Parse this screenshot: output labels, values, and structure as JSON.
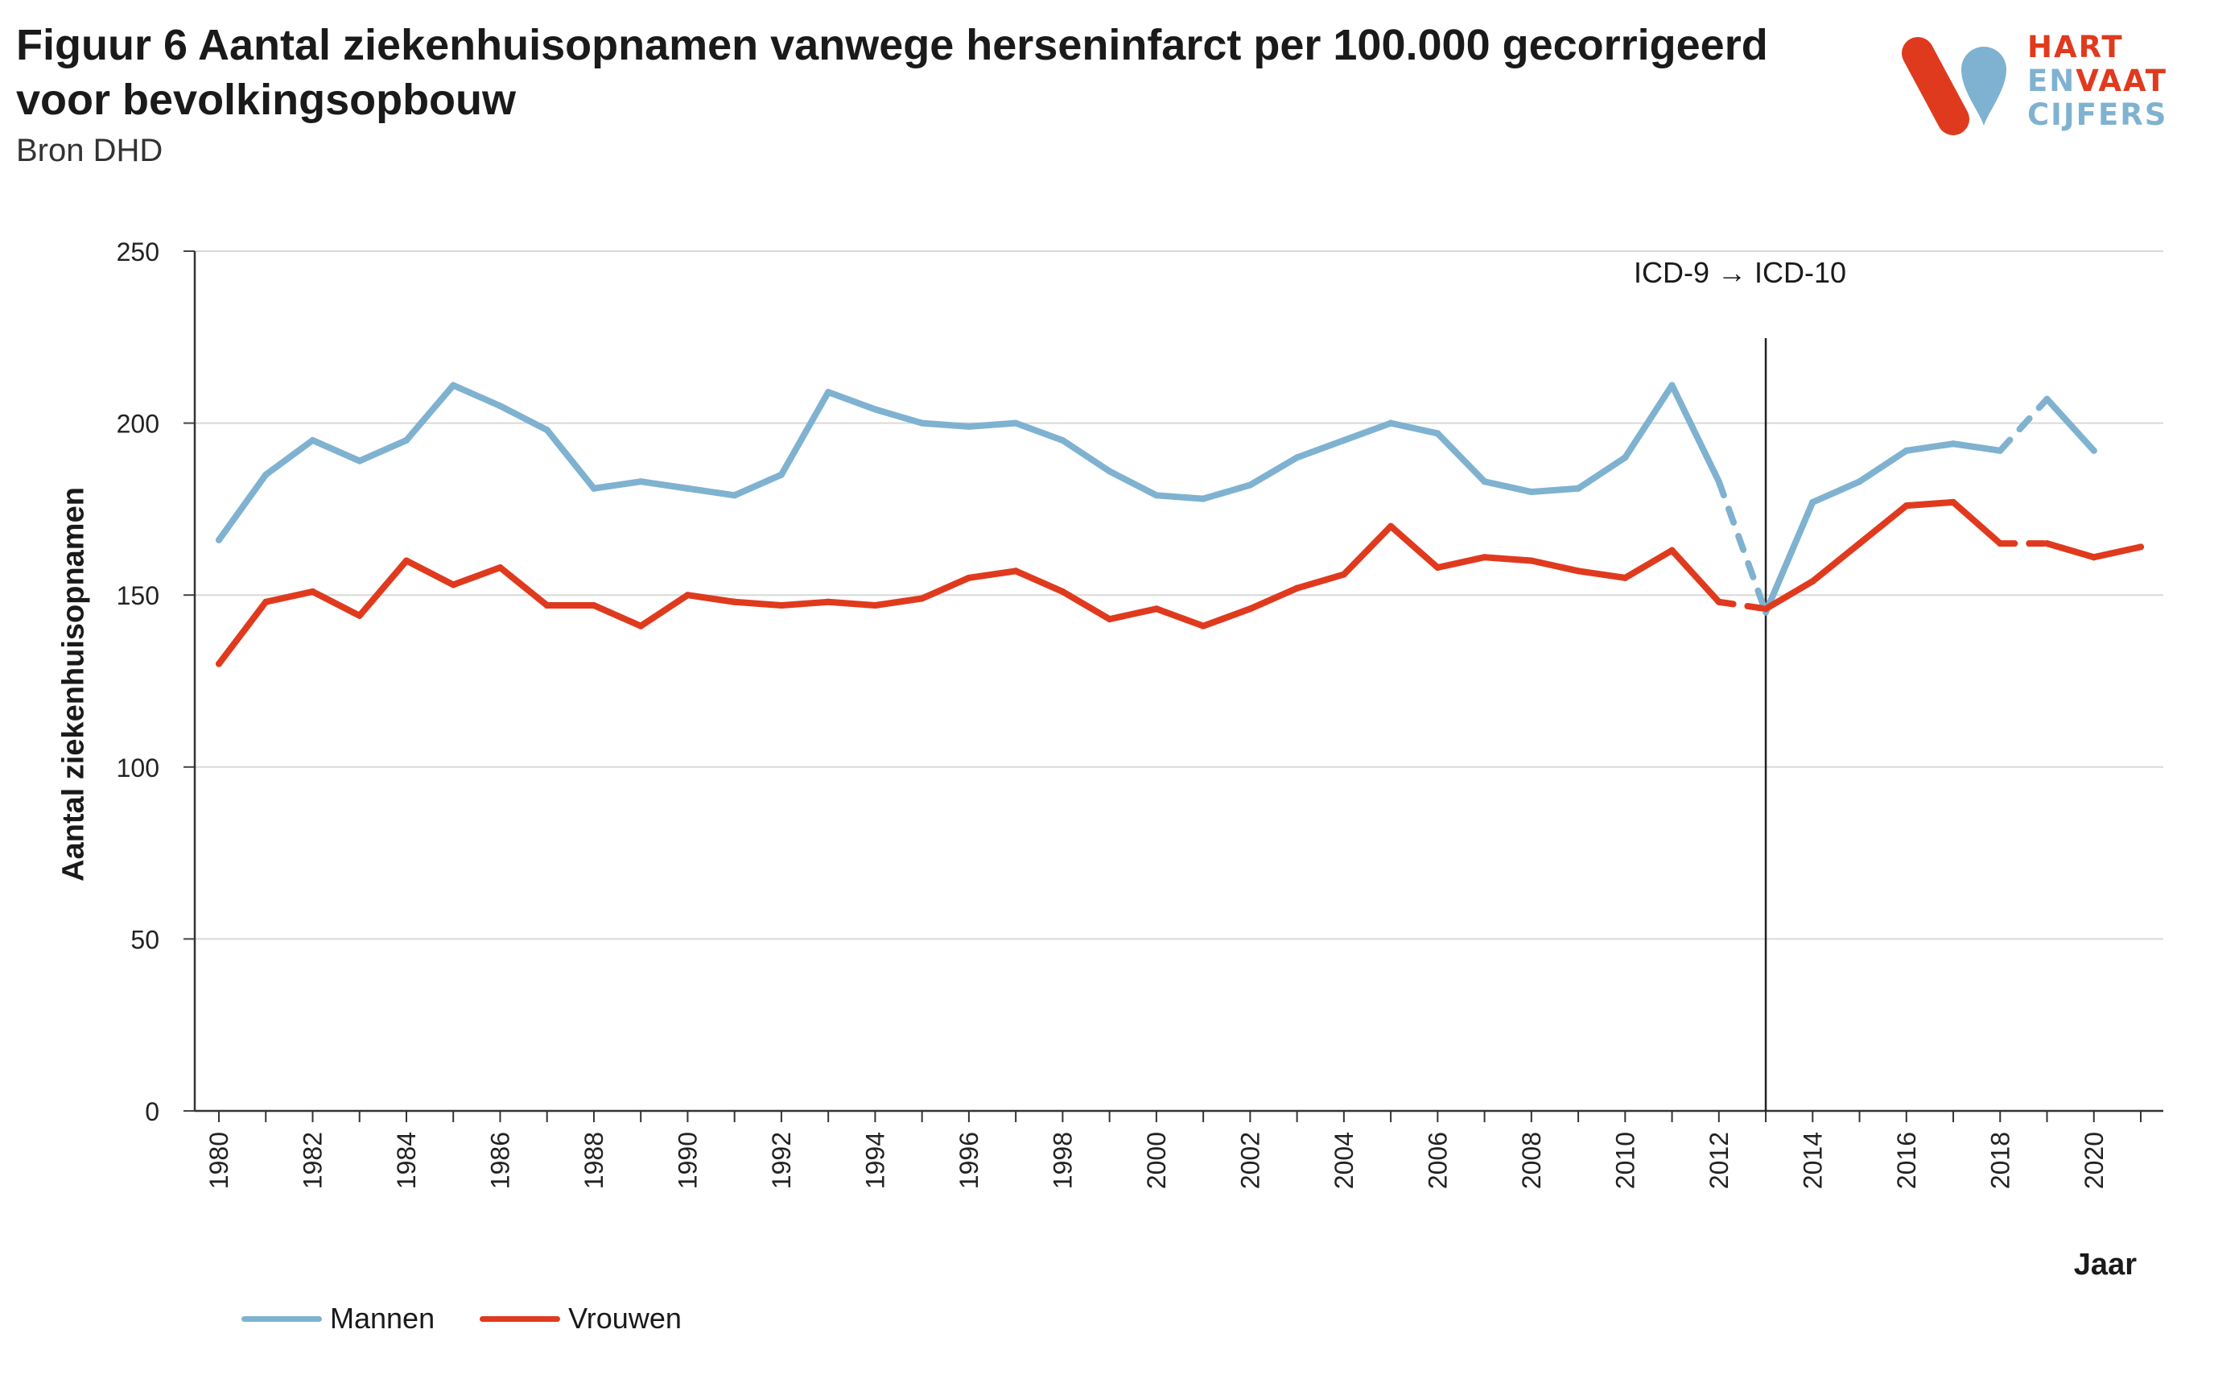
{
  "header": {
    "title": "Figuur 6 Aantal ziekenhuisopnamen vanwege herseninfarct per 100.000 gecorrigeerd voor bevolkingsopbouw",
    "source": "Bron DHD"
  },
  "logo": {
    "line1": "HART",
    "line2a": "EN",
    "line2b": "VAAT",
    "line3": "CIJFERS",
    "colors": {
      "red": "#e03a1e",
      "blue": "#7fb2d0"
    }
  },
  "chart_data": {
    "type": "line",
    "title": "Figuur 6 Aantal ziekenhuisopnamen vanwege herseninfarct per 100.000 gecorrigeerd voor bevolkingsopbouw",
    "xlabel": "Jaar",
    "ylabel": "Aantal ziekenhuisopnamen",
    "ylim": [
      0,
      250
    ],
    "yticks": [
      0,
      50,
      100,
      150,
      200,
      250
    ],
    "xlim": [
      1980,
      2021
    ],
    "xticks": [
      1980,
      1982,
      1984,
      1986,
      1988,
      1990,
      1992,
      1994,
      1996,
      1998,
      2000,
      2002,
      2004,
      2006,
      2008,
      2010,
      2012,
      2014,
      2016,
      2018,
      2020
    ],
    "grid": true,
    "legend": "bottom-left",
    "annotation": {
      "text": "ICD-9 → ICD-10",
      "x": 2013
    },
    "x": [
      1980,
      1981,
      1982,
      1983,
      1984,
      1985,
      1986,
      1987,
      1988,
      1989,
      1990,
      1991,
      1992,
      1993,
      1994,
      1995,
      1996,
      1997,
      1998,
      1999,
      2000,
      2001,
      2002,
      2003,
      2004,
      2005,
      2006,
      2007,
      2008,
      2009,
      2010,
      2011,
      2012,
      2013,
      2014,
      2015,
      2016,
      2017,
      2018,
      2019,
      2020,
      2021
    ],
    "series": [
      {
        "name": "Mannen",
        "color": "#7fb2d0",
        "values": [
          166,
          185,
          195,
          189,
          195,
          211,
          205,
          198,
          181,
          183,
          181,
          179,
          185,
          209,
          204,
          200,
          199,
          200,
          195,
          186,
          179,
          178,
          182,
          190,
          195,
          200,
          197,
          183,
          180,
          181,
          190,
          211,
          183,
          145,
          177,
          183,
          192,
          194,
          192,
          207,
          192,
          null
        ],
        "dashed_segments": [
          [
            2012,
            2013
          ],
          [
            2018,
            2019
          ]
        ]
      },
      {
        "name": "Vrouwen",
        "color": "#e03a1e",
        "values": [
          130,
          148,
          151,
          144,
          160,
          153,
          158,
          147,
          147,
          141,
          150,
          148,
          147,
          148,
          147,
          149,
          155,
          157,
          151,
          143,
          146,
          141,
          146,
          152,
          156,
          170,
          158,
          161,
          160,
          157,
          155,
          163,
          148,
          146,
          154,
          165,
          176,
          177,
          165,
          165,
          161,
          164
        ],
        "dashed_segments": [
          [
            2012,
            2013
          ],
          [
            2018,
            2019
          ]
        ]
      }
    ]
  }
}
